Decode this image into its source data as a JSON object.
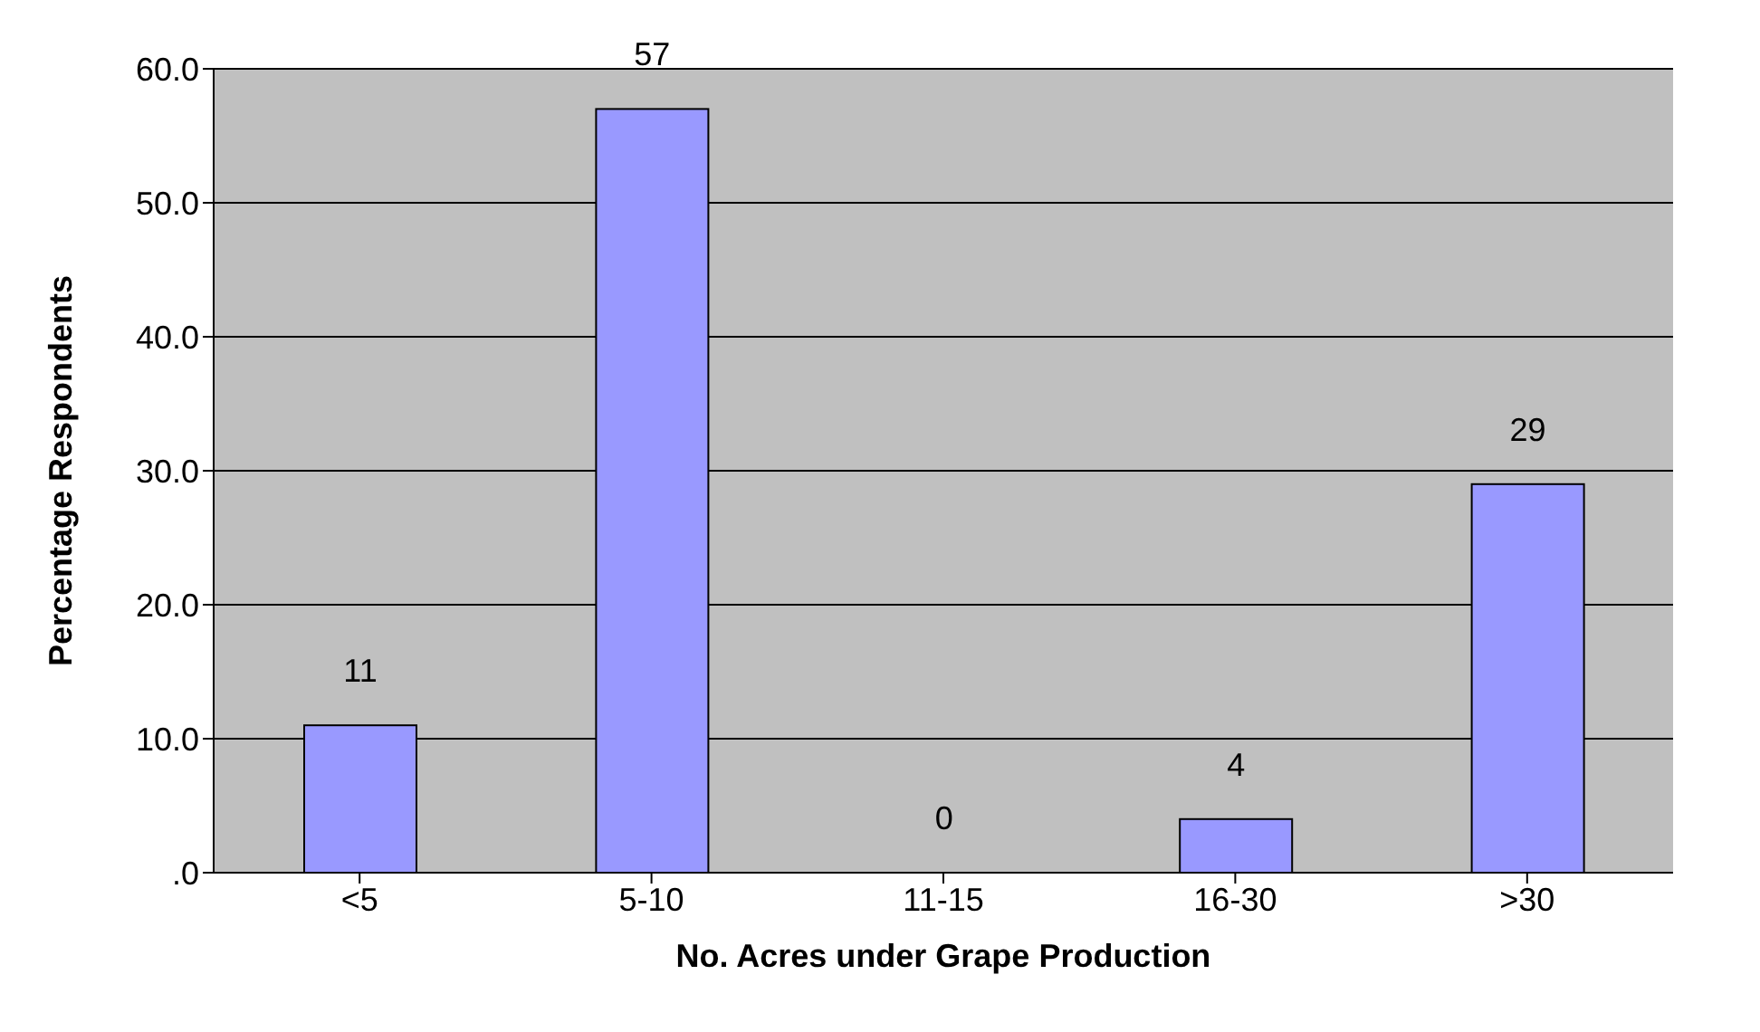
{
  "chart_data": {
    "type": "bar",
    "xlabel": "No. Acres under Grape Production",
    "ylabel": "Percentage Respondents",
    "categories": [
      "<5",
      "5-10",
      "11-15",
      "16-30",
      ">30"
    ],
    "values": [
      11,
      57,
      0,
      4,
      29
    ],
    "color": "#9999ff",
    "ylim": [
      0,
      60
    ],
    "yticks": [
      {
        "value": 0,
        "label": ".0"
      },
      {
        "value": 10,
        "label": "10.0"
      },
      {
        "value": 20,
        "label": "20.0"
      },
      {
        "value": 30,
        "label": "30.0"
      },
      {
        "value": 40,
        "label": "40.0"
      },
      {
        "value": 50,
        "label": "50.0"
      },
      {
        "value": 60,
        "label": "60.0"
      }
    ],
    "grid": "y",
    "data_labels": true,
    "legend": false
  }
}
